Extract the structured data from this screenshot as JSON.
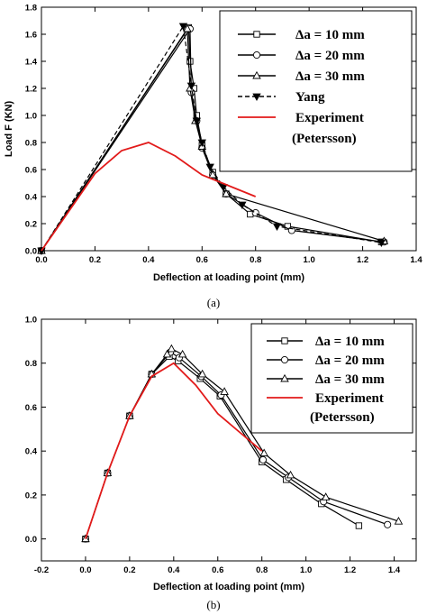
{
  "chart_data": [
    {
      "type": "line",
      "caption": "(a)",
      "xlabel": "Deflection at loading point (mm)",
      "ylabel": "Load F (KN)",
      "xlim": [
        0.0,
        1.4
      ],
      "ylim": [
        0.0,
        1.8
      ],
      "xticks": [
        "0.0",
        "0.2",
        "0.4",
        "0.6",
        "0.8",
        "1.0",
        "1.2",
        "1.4"
      ],
      "yticks": [
        "0.0",
        "0.2",
        "0.4",
        "0.6",
        "0.8",
        "1.0",
        "1.2",
        "1.4",
        "1.6",
        "1.8"
      ],
      "legend_position": "top-right",
      "series": [
        {
          "name": "Δa = 10 mm",
          "marker": "square",
          "color": "#000000",
          "dash": "solid",
          "x": [
            0,
            0.55,
            0.555,
            0.57,
            0.58,
            0.6,
            0.64,
            0.69,
            0.78,
            0.92,
            1.27
          ],
          "y": [
            0,
            1.65,
            1.4,
            1.2,
            1.0,
            0.78,
            0.58,
            0.42,
            0.27,
            0.18,
            0.065
          ]
        },
        {
          "name": "Δa = 20 mm",
          "marker": "circle",
          "color": "#000000",
          "dash": "solid",
          "x": [
            0,
            0.555,
            0.56,
            0.58,
            0.6,
            0.64,
            0.69,
            0.8,
            0.935,
            1.28
          ],
          "y": [
            0,
            1.64,
            1.17,
            0.96,
            0.76,
            0.56,
            0.42,
            0.28,
            0.15,
            0.065
          ]
        },
        {
          "name": "Δa = 30 mm",
          "marker": "triangle",
          "color": "#000000",
          "dash": "solid",
          "x": [
            0,
            0.545,
            0.555,
            0.575,
            0.6,
            0.64,
            0.69,
            1.28
          ],
          "y": [
            0,
            1.64,
            1.2,
            0.96,
            0.77,
            0.56,
            0.42,
            0.07
          ]
        },
        {
          "name": "Yang",
          "marker": "filled-triangle-down",
          "color": "#000000",
          "dash": "dashed",
          "x": [
            0,
            0.53,
            0.56,
            0.58,
            0.6,
            0.63,
            0.68,
            0.75,
            0.88,
            1.27
          ],
          "y": [
            0,
            1.66,
            1.22,
            0.96,
            0.8,
            0.62,
            0.47,
            0.34,
            0.18,
            0.06
          ]
        },
        {
          "name": "Experiment (Petersson)",
          "marker": "none",
          "color": "#e21a1a",
          "dash": "solid",
          "x": [
            0,
            0.2,
            0.3,
            0.4,
            0.5,
            0.6,
            0.8
          ],
          "y": [
            0,
            0.57,
            0.74,
            0.8,
            0.7,
            0.56,
            0.4
          ]
        }
      ]
    },
    {
      "type": "line",
      "caption": "(b)",
      "xlabel": "Deflection at loading point (mm)",
      "ylabel": "Load F (KN)",
      "xlim": [
        -0.2,
        1.5
      ],
      "ylim": [
        -0.1,
        1.0
      ],
      "xticks": [
        "-0.2",
        "0.0",
        "0.2",
        "0.4",
        "0.6",
        "0.8",
        "1.0",
        "1.2",
        "1.4"
      ],
      "yticks": [
        "0.0",
        "0.2",
        "0.4",
        "0.6",
        "0.8",
        "1.0"
      ],
      "legend_position": "top-right",
      "series": [
        {
          "name": "Δa = 10 mm",
          "marker": "square",
          "color": "#000000",
          "dash": "solid",
          "x": [
            0,
            0.1,
            0.2,
            0.3,
            0.38,
            0.42,
            0.52,
            0.61,
            0.8,
            0.91,
            1.07,
            1.24
          ],
          "y": [
            0,
            0.3,
            0.56,
            0.75,
            0.83,
            0.81,
            0.73,
            0.65,
            0.35,
            0.27,
            0.16,
            0.06
          ]
        },
        {
          "name": "Δa = 20 mm",
          "marker": "circle",
          "color": "#000000",
          "dash": "solid",
          "x": [
            0,
            0.1,
            0.2,
            0.3,
            0.385,
            0.425,
            0.525,
            0.615,
            0.805,
            0.92,
            1.08,
            1.37
          ],
          "y": [
            0,
            0.3,
            0.56,
            0.75,
            0.85,
            0.825,
            0.74,
            0.655,
            0.36,
            0.28,
            0.17,
            0.065
          ]
        },
        {
          "name": "Δa = 30 mm",
          "marker": "triangle",
          "color": "#000000",
          "dash": "solid",
          "x": [
            0,
            0.1,
            0.2,
            0.3,
            0.37,
            0.39,
            0.44,
            0.53,
            0.63,
            0.81,
            0.93,
            1.09,
            1.42
          ],
          "y": [
            0,
            0.3,
            0.56,
            0.75,
            0.84,
            0.865,
            0.84,
            0.75,
            0.67,
            0.39,
            0.29,
            0.19,
            0.08
          ]
        },
        {
          "name": "Experiment (Petersson)",
          "marker": "none",
          "color": "#e21a1a",
          "dash": "solid",
          "x": [
            0,
            0.1,
            0.2,
            0.3,
            0.4,
            0.5,
            0.6,
            0.8
          ],
          "y": [
            0,
            0.3,
            0.56,
            0.74,
            0.8,
            0.7,
            0.57,
            0.4
          ]
        }
      ]
    }
  ]
}
